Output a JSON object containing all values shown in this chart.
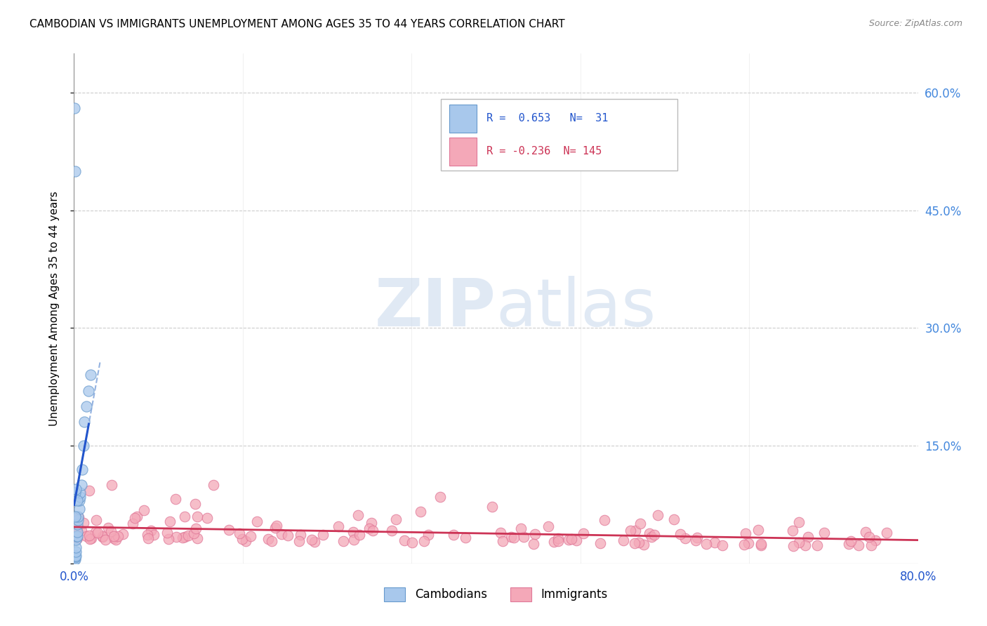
{
  "title": "CAMBODIAN VS IMMIGRANTS UNEMPLOYMENT AMONG AGES 35 TO 44 YEARS CORRELATION CHART",
  "source": "Source: ZipAtlas.com",
  "ylabel": "Unemployment Among Ages 35 to 44 years",
  "xlim": [
    0.0,
    0.8
  ],
  "ylim": [
    0.0,
    0.65
  ],
  "yticks": [
    0.0,
    0.15,
    0.3,
    0.45,
    0.6
  ],
  "yticklabels_right": [
    "",
    "15.0%",
    "30.0%",
    "45.0%",
    "60.0%"
  ],
  "xtick_positions": [
    0.0,
    0.16,
    0.32,
    0.48,
    0.64,
    0.8
  ],
  "background_color": "#ffffff",
  "grid_color": "#cccccc",
  "cambodian_color": "#A8C8EC",
  "cambodian_edge_color": "#6699CC",
  "immigrant_color": "#F4A8B8",
  "immigrant_edge_color": "#E07898",
  "blue_line_color": "#2255CC",
  "pink_line_color": "#CC3355",
  "blue_dashed_color": "#88AADD",
  "R_cambodian": 0.653,
  "N_cambodian": 31,
  "R_immigrant": -0.236,
  "N_immigrant": 145,
  "watermark_zip": "ZIP",
  "watermark_atlas": "atlas",
  "legend_cambodians": "Cambodians",
  "legend_immigrants": "Immigrants",
  "blue_text_color": "#2255CC",
  "pink_text_color": "#CC3355",
  "right_axis_color": "#4488DD"
}
